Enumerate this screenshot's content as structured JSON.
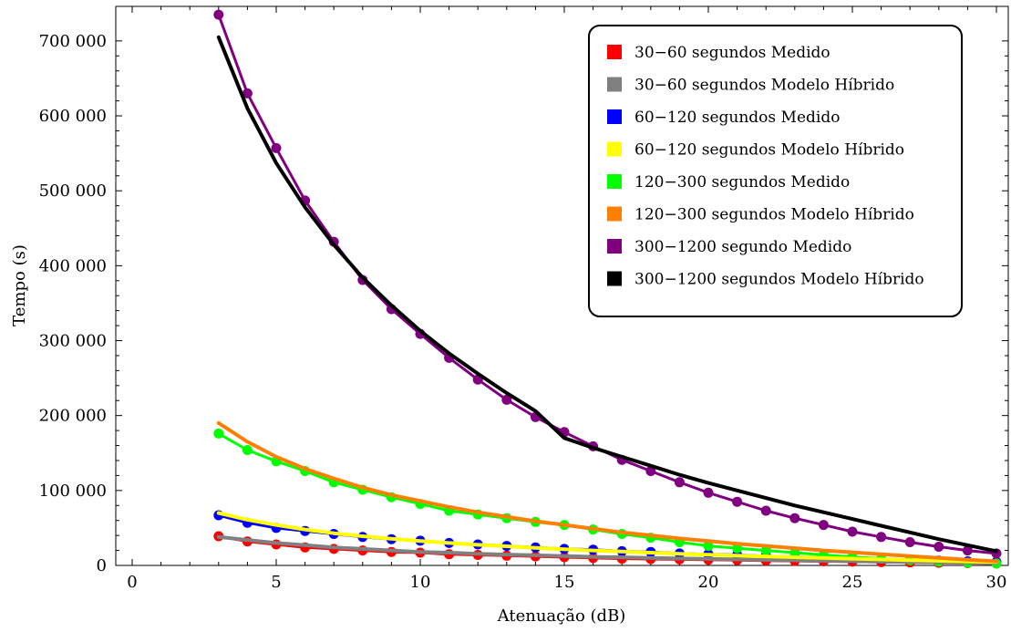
{
  "chart_data": {
    "type": "line",
    "xlabel": "Atenuação (dB)",
    "ylabel": "Tempo (s)",
    "xlim": [
      0,
      30
    ],
    "ylim": [
      0,
      740000
    ],
    "x_ticks": [
      0,
      5,
      10,
      15,
      20,
      25,
      30
    ],
    "y_ticks": [
      0,
      100000,
      200000,
      300000,
      400000,
      500000,
      600000,
      700000
    ],
    "x_tick_labels": [
      "0",
      "5",
      "10",
      "15",
      "20",
      "25",
      "30"
    ],
    "y_tick_labels": [
      "0",
      "100 000",
      "200 000",
      "300 000",
      "400 000",
      "500 000",
      "600 000",
      "700 000"
    ],
    "legend_position": "top-right",
    "grid": false,
    "x": [
      3,
      4,
      5,
      6,
      7,
      8,
      9,
      10,
      11,
      12,
      13,
      14,
      15,
      16,
      17,
      18,
      19,
      20,
      21,
      22,
      23,
      24,
      25,
      26,
      27,
      28,
      29,
      30
    ],
    "series": [
      {
        "name": "30−60 segundos Medido",
        "kind": "measured",
        "color": "#ff0000",
        "values": [
          39000,
          32000,
          28000,
          24000,
          22000,
          20000,
          18000,
          17000,
          15000,
          14000,
          13000,
          12000,
          11000,
          10000,
          9000,
          8500,
          8000,
          7500,
          7000,
          6500,
          6000,
          5500,
          5000,
          4500,
          4000,
          3500,
          3000,
          2500
        ]
      },
      {
        "name": "30−60 segundos Modelo Híbrido",
        "kind": "model",
        "color": "#808080",
        "values": [
          38000,
          34000,
          30000,
          27000,
          24000,
          22000,
          20000,
          18000,
          17000,
          15500,
          14500,
          13500,
          12500,
          11500,
          10800,
          10000,
          9300,
          8600,
          8000,
          7400,
          6800,
          6200,
          5700,
          5200,
          4700,
          4200,
          3800,
          3400
        ]
      },
      {
        "name": "60−120 segundos Medido",
        "kind": "measured",
        "color": "#0000ff",
        "values": [
          67000,
          57000,
          50000,
          46000,
          42000,
          38000,
          35000,
          33000,
          30000,
          28000,
          26000,
          24000,
          22000,
          21000,
          19000,
          18000,
          16000,
          15000,
          14000,
          12500,
          11500,
          10500,
          9500,
          8500,
          7500,
          6500,
          5500,
          4500
        ]
      },
      {
        "name": "60−120 segundos Modelo Híbrido",
        "kind": "model",
        "color": "#ffff00",
        "values": [
          70000,
          61000,
          54000,
          48000,
          43000,
          39000,
          35500,
          32500,
          30000,
          27500,
          25500,
          23500,
          21500,
          20000,
          18500,
          17000,
          15500,
          14300,
          13000,
          12000,
          11000,
          10000,
          9000,
          8000,
          7100,
          6200,
          5400,
          4600
        ]
      },
      {
        "name": "120−300 segundos Medido",
        "kind": "measured",
        "color": "#00ff00",
        "values": [
          176000,
          154000,
          139000,
          126000,
          111000,
          101000,
          91000,
          82000,
          73000,
          68000,
          63000,
          58000,
          54000,
          48000,
          42000,
          37000,
          31000,
          26000,
          23000,
          20000,
          17000,
          14000,
          11500,
          9000,
          7000,
          5000,
          3500,
          2500
        ]
      },
      {
        "name": "120−300 segundos Modelo Híbrido",
        "kind": "model",
        "color": "#ff8000",
        "values": [
          190000,
          165000,
          145000,
          129000,
          116000,
          104000,
          94000,
          86000,
          78000,
          71000,
          65000,
          59000,
          54000,
          49000,
          44000,
          40000,
          36000,
          32500,
          29000,
          26000,
          23000,
          20000,
          17500,
          15000,
          12500,
          10000,
          7500,
          5500
        ]
      },
      {
        "name": "300−1200 segundo Medido",
        "kind": "measured",
        "color": "#800080",
        "values": [
          735000,
          630000,
          557000,
          487000,
          432000,
          381000,
          342000,
          309000,
          277000,
          248000,
          221000,
          198000,
          178000,
          159000,
          141000,
          126000,
          111000,
          97000,
          85000,
          73000,
          63000,
          54000,
          45000,
          38000,
          31000,
          25000,
          20000,
          16000
        ]
      },
      {
        "name": "300−1200 segundos Modelo Híbrido",
        "kind": "model",
        "color": "#000000",
        "values": [
          705000,
          610000,
          537000,
          478000,
          428000,
          384000,
          347000,
          313000,
          283000,
          256000,
          230000,
          206000,
          170000,
          157000,
          145000,
          133000,
          121000,
          110000,
          100000,
          90000,
          80000,
          71000,
          62000,
          53000,
          44000,
          35000,
          27000,
          19000
        ]
      }
    ]
  }
}
